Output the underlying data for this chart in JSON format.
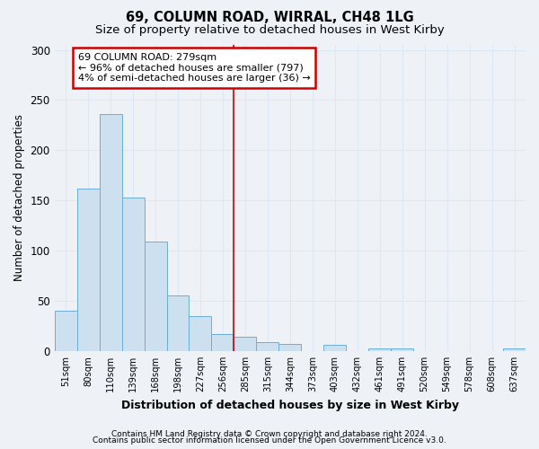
{
  "title": "69, COLUMN ROAD, WIRRAL, CH48 1LG",
  "subtitle": "Size of property relative to detached houses in West Kirby",
  "xlabel": "Distribution of detached houses by size in West Kirby",
  "ylabel": "Number of detached properties",
  "footer1": "Contains HM Land Registry data © Crown copyright and database right 2024.",
  "footer2": "Contains public sector information licensed under the Open Government Licence v3.0.",
  "bin_labels": [
    "51sqm",
    "80sqm",
    "110sqm",
    "139sqm",
    "168sqm",
    "198sqm",
    "227sqm",
    "256sqm",
    "285sqm",
    "315sqm",
    "344sqm",
    "373sqm",
    "403sqm",
    "432sqm",
    "461sqm",
    "491sqm",
    "520sqm",
    "549sqm",
    "578sqm",
    "608sqm",
    "637sqm"
  ],
  "bar_values": [
    40,
    162,
    236,
    153,
    109,
    55,
    35,
    17,
    14,
    9,
    7,
    0,
    6,
    0,
    3,
    3,
    0,
    0,
    0,
    0,
    3
  ],
  "bar_color": "#cde0f0",
  "bar_edge_color": "#6aaed6",
  "vline_x": 8.0,
  "vline_color": "#cc0000",
  "annotation_text": "69 COLUMN ROAD: 279sqm\n← 96% of detached houses are smaller (797)\n4% of semi-detached houses are larger (36) →",
  "annotation_box_color": "#ffffff",
  "annotation_box_edge": "#cc0000",
  "ylim": [
    0,
    305
  ],
  "yticks": [
    0,
    50,
    100,
    150,
    200,
    250,
    300
  ],
  "bg_color": "#eef2f7",
  "grid_color": "#dce8f5",
  "title_fontsize": 10.5,
  "subtitle_fontsize": 9.5
}
